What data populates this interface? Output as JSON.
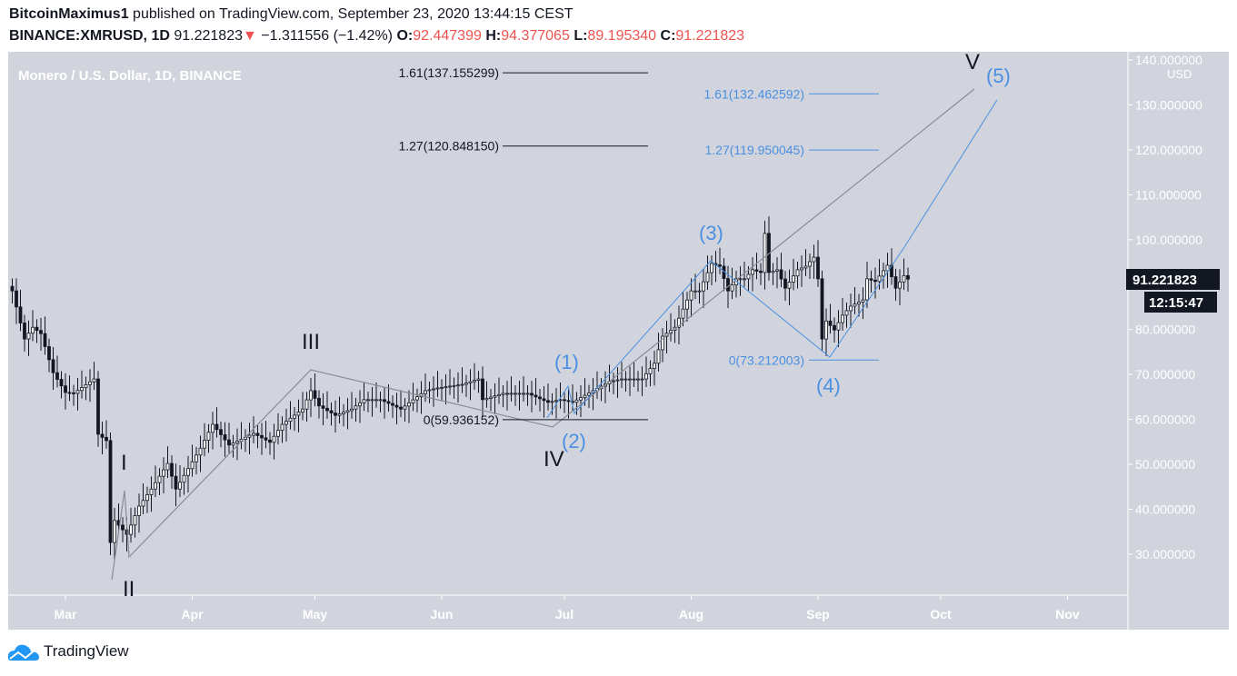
{
  "header": {
    "author": "BitcoinMaximus1",
    "published": "published on TradingView.com, September 23, 2020 13:44:15 CEST",
    "symbol": "BINANCE:XMRUSD, 1D",
    "last": "91.221823",
    "change": "−1.311556 (−1.42%)",
    "o_label": "O:",
    "o": "92.447399",
    "h_label": "H:",
    "h": "94.377065",
    "l_label": "L:",
    "l": "89.195340",
    "c_label": "C:",
    "c": "91.221823"
  },
  "colors": {
    "background": "#d1d4dc",
    "wave_primary": "#787b86",
    "wave_minor": "#4a90e2",
    "down": "#ef5350",
    "candle": "#131722"
  },
  "chart_data": {
    "type": "candlestick",
    "title": "Monero / U.S. Dollar, 1D, BINANCE",
    "currency": "USD",
    "ylim": [
      22,
      142
    ],
    "y_ticks": [
      "140.000000",
      "130.000000",
      "120.000000",
      "110.000000",
      "100.000000",
      "80.000000",
      "70.000000",
      "60.000000",
      "50.000000",
      "40.000000",
      "30.000000"
    ],
    "y_tick_values": [
      140,
      130,
      120,
      110,
      100,
      80,
      70,
      60,
      50,
      40,
      30
    ],
    "x_ticks": [
      "Mar",
      "Apr",
      "May",
      "Jun",
      "Jul",
      "Aug",
      "Sep",
      "Oct",
      "Nov"
    ],
    "x_tick_dates": [
      "2020-03-01",
      "2020-04-01",
      "2020-05-01",
      "2020-06-01",
      "2020-07-01",
      "2020-08-01",
      "2020-09-01",
      "2020-10-01",
      "2020-11-01"
    ],
    "approx_closes": [
      [
        "2020-02-17",
        88.6
      ],
      [
        "2020-02-20",
        77.9
      ],
      [
        "2020-02-22",
        80.5
      ],
      [
        "2020-02-24",
        79.1
      ],
      [
        "2020-02-27",
        70.4
      ],
      [
        "2020-03-01",
        66.0
      ],
      [
        "2020-03-03",
        65.8
      ],
      [
        "2020-03-08",
        69.0
      ],
      [
        "2020-03-09",
        56.7
      ],
      [
        "2020-03-11",
        55.3
      ],
      [
        "2020-03-12",
        32.6
      ],
      [
        "2020-03-13",
        37.5
      ],
      [
        "2020-03-16",
        34.4
      ],
      [
        "2020-03-19",
        40.7
      ],
      [
        "2020-03-22",
        44.5
      ],
      [
        "2020-03-26",
        50.2
      ],
      [
        "2020-03-28",
        44.5
      ],
      [
        "2020-04-03",
        53.6
      ],
      [
        "2020-04-06",
        58.9
      ],
      [
        "2020-04-10",
        54.3
      ],
      [
        "2020-04-16",
        56.9
      ],
      [
        "2020-04-20",
        54.9
      ],
      [
        "2020-04-23",
        58.9
      ],
      [
        "2020-04-28",
        62.3
      ],
      [
        "2020-04-30",
        66.4
      ],
      [
        "2020-05-02",
        63.0
      ],
      [
        "2020-05-06",
        60.9
      ],
      [
        "2020-05-10",
        62.3
      ],
      [
        "2020-05-13",
        64.4
      ],
      [
        "2020-05-17",
        64.4
      ],
      [
        "2020-05-22",
        62.3
      ],
      [
        "2020-05-28",
        66.4
      ],
      [
        "2020-05-31",
        67.0
      ],
      [
        "2020-06-06",
        67.8
      ],
      [
        "2020-06-10",
        69.0
      ],
      [
        "2020-06-11",
        64.4
      ],
      [
        "2020-06-16",
        65.8
      ],
      [
        "2020-06-22",
        65.8
      ],
      [
        "2020-06-27",
        63.8
      ],
      [
        "2020-06-30",
        64.4
      ],
      [
        "2020-07-03",
        63.8
      ],
      [
        "2020-07-08",
        66.4
      ],
      [
        "2020-07-12",
        68.4
      ],
      [
        "2020-07-15",
        69.0
      ],
      [
        "2020-07-20",
        69.0
      ],
      [
        "2020-07-23",
        72.5
      ],
      [
        "2020-07-25",
        78.5
      ],
      [
        "2020-07-28",
        80.5
      ],
      [
        "2020-08-01",
        88.6
      ],
      [
        "2020-08-03",
        88.6
      ],
      [
        "2020-08-06",
        94.7
      ],
      [
        "2020-08-08",
        94.1
      ],
      [
        "2020-08-10",
        88.6
      ],
      [
        "2020-08-12",
        91.3
      ],
      [
        "2020-08-14",
        91.3
      ],
      [
        "2020-08-16",
        93.3
      ],
      [
        "2020-08-18",
        92.7
      ],
      [
        "2020-08-19",
        101.4
      ],
      [
        "2020-08-20",
        92.7
      ],
      [
        "2020-08-22",
        93.3
      ],
      [
        "2020-08-24",
        89.2
      ],
      [
        "2020-08-27",
        93.3
      ],
      [
        "2020-08-29",
        94.1
      ],
      [
        "2020-08-31",
        96.1
      ],
      [
        "2020-09-01",
        91.3
      ],
      [
        "2020-09-02",
        77.9
      ],
      [
        "2020-09-03",
        81.9
      ],
      [
        "2020-09-05",
        79.9
      ],
      [
        "2020-09-07",
        83.2
      ],
      [
        "2020-09-09",
        85.2
      ],
      [
        "2020-09-12",
        86.6
      ],
      [
        "2020-09-13",
        91.3
      ],
      [
        "2020-09-15",
        90.7
      ],
      [
        "2020-09-18",
        94.3
      ],
      [
        "2020-09-20",
        89.2
      ],
      [
        "2020-09-22",
        92.0
      ],
      [
        "2020-09-23",
        91.221823
      ]
    ],
    "last_price_label": "91.221823",
    "countdown": "12:15:47",
    "fib_primary": [
      {
        "label": "1.61(137.155299)",
        "price": 137.155299
      },
      {
        "label": "1.27(120.848150)",
        "price": 120.84815
      },
      {
        "label": "0(59.936152)",
        "price": 59.936152
      }
    ],
    "fib_minor": [
      {
        "label": "1.61(132.462592)",
        "price": 132.462592
      },
      {
        "label": "1.27(119.950045)",
        "price": 119.950045
      },
      {
        "label": "0(73.212003)",
        "price": 73.212003
      }
    ],
    "wave_labels_primary": [
      "I",
      "II",
      "III",
      "IV",
      "V"
    ],
    "wave_labels_minor": [
      "(1)",
      "(2)",
      "(3)",
      "(4)",
      "(5)"
    ]
  },
  "footer": {
    "brand": "TradingView"
  }
}
